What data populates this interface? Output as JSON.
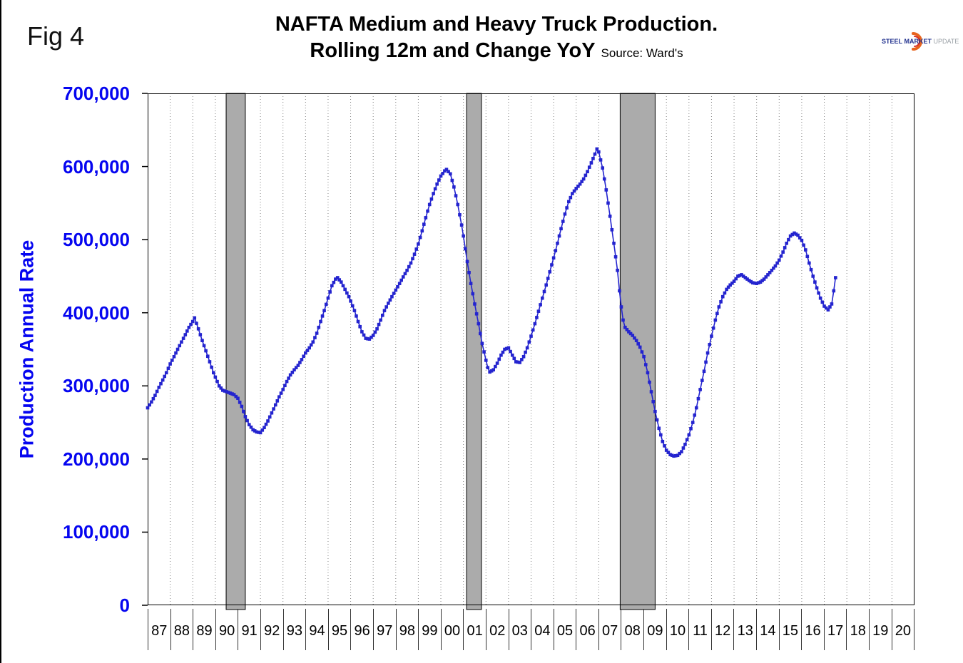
{
  "figure_label": "Fig 4",
  "title": {
    "line1": "NAFTA Medium and Heavy Truck Production.",
    "line2": "Rolling 12m and Change YoY",
    "source": "Source: Ward's"
  },
  "logo": {
    "steel": "STEEL",
    "market": "MARKET",
    "update": "UPDATE",
    "arc_color": "#E8641E"
  },
  "y_axis": {
    "title": "Production Annual Rate",
    "tick_labels": [
      "700,000",
      "600,000",
      "500,000",
      "400,000",
      "300,000",
      "200,000",
      "100,000",
      "0"
    ],
    "label_color": "#0505F0"
  },
  "x_axis": {
    "tick_labels": [
      "87",
      "88",
      "89",
      "90",
      "91",
      "92",
      "93",
      "94",
      "95",
      "96",
      "97",
      "98",
      "99",
      "00",
      "01",
      "02",
      "03",
      "04",
      "05",
      "06",
      "07",
      "08",
      "09",
      "10",
      "11",
      "12",
      "13",
      "14",
      "15",
      "16",
      "17",
      "18",
      "19",
      "20"
    ]
  },
  "chart_data": {
    "type": "line",
    "title": "NAFTA Medium and Heavy Truck Production. Rolling 12m and Change YoY",
    "source": "Source: Ward's",
    "xlabel": "",
    "ylabel": "Production Annual Rate",
    "ylim": [
      0,
      700000
    ],
    "ytick_interval": 100000,
    "xlim": [
      1987,
      2021
    ],
    "grid": "vertical-dotted",
    "legend": "none",
    "line_color": "#2424CF",
    "band_color": "#ABABAB",
    "marker": "square",
    "recession_bands": [
      [
        1990.48,
        1991.33
      ],
      [
        2001.14,
        2001.8
      ],
      [
        2007.95,
        2009.5
      ]
    ],
    "series": [
      {
        "name": "Production Annual Rate (rolling 12m)",
        "points": [
          [
            1987.0,
            270000
          ],
          [
            1987.17,
            278000
          ],
          [
            1987.33,
            287000
          ],
          [
            1987.5,
            298000
          ],
          [
            1987.67,
            308000
          ],
          [
            1987.83,
            318000
          ],
          [
            1988.0,
            330000
          ],
          [
            1988.17,
            340000
          ],
          [
            1988.33,
            350000
          ],
          [
            1988.5,
            360000
          ],
          [
            1988.67,
            370000
          ],
          [
            1988.83,
            380000
          ],
          [
            1989.0,
            388000
          ],
          [
            1989.08,
            393000
          ],
          [
            1989.25,
            378000
          ],
          [
            1989.42,
            362000
          ],
          [
            1989.58,
            348000
          ],
          [
            1989.75,
            333000
          ],
          [
            1989.92,
            318000
          ],
          [
            1990.0,
            312000
          ],
          [
            1990.17,
            300000
          ],
          [
            1990.33,
            294000
          ],
          [
            1990.5,
            292000
          ],
          [
            1990.67,
            290000
          ],
          [
            1990.83,
            288000
          ],
          [
            1991.0,
            283000
          ],
          [
            1991.17,
            272000
          ],
          [
            1991.33,
            258000
          ],
          [
            1991.5,
            247000
          ],
          [
            1991.67,
            240000
          ],
          [
            1991.83,
            237000
          ],
          [
            1992.0,
            236000
          ],
          [
            1992.17,
            243000
          ],
          [
            1992.33,
            252000
          ],
          [
            1992.5,
            263000
          ],
          [
            1992.67,
            274000
          ],
          [
            1992.83,
            285000
          ],
          [
            1993.0,
            295000
          ],
          [
            1993.17,
            306000
          ],
          [
            1993.33,
            315000
          ],
          [
            1993.5,
            322000
          ],
          [
            1993.67,
            328000
          ],
          [
            1993.83,
            336000
          ],
          [
            1994.0,
            345000
          ],
          [
            1994.17,
            352000
          ],
          [
            1994.33,
            360000
          ],
          [
            1994.5,
            372000
          ],
          [
            1994.67,
            388000
          ],
          [
            1994.83,
            403000
          ],
          [
            1995.0,
            420000
          ],
          [
            1995.17,
            437000
          ],
          [
            1995.33,
            446000
          ],
          [
            1995.42,
            448000
          ],
          [
            1995.58,
            442000
          ],
          [
            1995.75,
            432000
          ],
          [
            1995.92,
            422000
          ],
          [
            1996.0,
            416000
          ],
          [
            1996.17,
            403000
          ],
          [
            1996.33,
            388000
          ],
          [
            1996.5,
            374000
          ],
          [
            1996.67,
            365000
          ],
          [
            1996.83,
            364000
          ],
          [
            1997.0,
            369000
          ],
          [
            1997.17,
            378000
          ],
          [
            1997.33,
            390000
          ],
          [
            1997.5,
            403000
          ],
          [
            1997.67,
            413000
          ],
          [
            1997.83,
            422000
          ],
          [
            1998.0,
            431000
          ],
          [
            1998.17,
            440000
          ],
          [
            1998.33,
            449000
          ],
          [
            1998.5,
            458000
          ],
          [
            1998.67,
            468000
          ],
          [
            1998.83,
            480000
          ],
          [
            1999.0,
            494000
          ],
          [
            1999.17,
            512000
          ],
          [
            1999.33,
            530000
          ],
          [
            1999.5,
            548000
          ],
          [
            1999.67,
            563000
          ],
          [
            1999.83,
            576000
          ],
          [
            2000.0,
            587000
          ],
          [
            2000.17,
            594000
          ],
          [
            2000.25,
            596000
          ],
          [
            2000.42,
            590000
          ],
          [
            2000.58,
            572000
          ],
          [
            2000.75,
            548000
          ],
          [
            2000.92,
            520000
          ],
          [
            2001.0,
            505000
          ],
          [
            2001.17,
            470000
          ],
          [
            2001.33,
            440000
          ],
          [
            2001.5,
            412000
          ],
          [
            2001.67,
            385000
          ],
          [
            2001.83,
            358000
          ],
          [
            2002.0,
            335000
          ],
          [
            2002.08,
            325000
          ],
          [
            2002.17,
            319000
          ],
          [
            2002.33,
            322000
          ],
          [
            2002.5,
            331000
          ],
          [
            2002.67,
            342000
          ],
          [
            2002.83,
            350000
          ],
          [
            2003.0,
            352000
          ],
          [
            2003.17,
            342000
          ],
          [
            2003.33,
            333000
          ],
          [
            2003.5,
            332000
          ],
          [
            2003.67,
            340000
          ],
          [
            2003.83,
            352000
          ],
          [
            2004.0,
            368000
          ],
          [
            2004.17,
            385000
          ],
          [
            2004.33,
            402000
          ],
          [
            2004.5,
            420000
          ],
          [
            2004.67,
            438000
          ],
          [
            2004.83,
            456000
          ],
          [
            2005.0,
            475000
          ],
          [
            2005.17,
            495000
          ],
          [
            2005.33,
            515000
          ],
          [
            2005.5,
            535000
          ],
          [
            2005.67,
            552000
          ],
          [
            2005.83,
            563000
          ],
          [
            2006.0,
            570000
          ],
          [
            2006.17,
            576000
          ],
          [
            2006.33,
            583000
          ],
          [
            2006.5,
            593000
          ],
          [
            2006.67,
            605000
          ],
          [
            2006.83,
            617000
          ],
          [
            2006.92,
            624000
          ],
          [
            2007.0,
            620000
          ],
          [
            2007.17,
            598000
          ],
          [
            2007.33,
            568000
          ],
          [
            2007.5,
            532000
          ],
          [
            2007.67,
            495000
          ],
          [
            2007.83,
            458000
          ],
          [
            2007.92,
            430000
          ],
          [
            2008.0,
            408000
          ],
          [
            2008.08,
            390000
          ],
          [
            2008.17,
            380000
          ],
          [
            2008.33,
            374000
          ],
          [
            2008.5,
            369000
          ],
          [
            2008.67,
            362000
          ],
          [
            2008.83,
            353000
          ],
          [
            2009.0,
            340000
          ],
          [
            2009.17,
            318000
          ],
          [
            2009.33,
            292000
          ],
          [
            2009.5,
            265000
          ],
          [
            2009.67,
            242000
          ],
          [
            2009.83,
            224000
          ],
          [
            2010.0,
            212000
          ],
          [
            2010.17,
            206000
          ],
          [
            2010.33,
            204000
          ],
          [
            2010.5,
            205000
          ],
          [
            2010.67,
            210000
          ],
          [
            2010.83,
            220000
          ],
          [
            2011.0,
            233000
          ],
          [
            2011.17,
            250000
          ],
          [
            2011.33,
            270000
          ],
          [
            2011.5,
            295000
          ],
          [
            2011.67,
            320000
          ],
          [
            2011.83,
            345000
          ],
          [
            2012.0,
            368000
          ],
          [
            2012.17,
            390000
          ],
          [
            2012.33,
            408000
          ],
          [
            2012.5,
            422000
          ],
          [
            2012.67,
            432000
          ],
          [
            2012.83,
            438000
          ],
          [
            2013.0,
            443000
          ],
          [
            2013.17,
            450000
          ],
          [
            2013.33,
            452000
          ],
          [
            2013.5,
            448000
          ],
          [
            2013.67,
            444000
          ],
          [
            2013.83,
            441000
          ],
          [
            2014.0,
            440000
          ],
          [
            2014.17,
            442000
          ],
          [
            2014.33,
            446000
          ],
          [
            2014.5,
            452000
          ],
          [
            2014.67,
            458000
          ],
          [
            2014.83,
            464000
          ],
          [
            2015.0,
            472000
          ],
          [
            2015.17,
            483000
          ],
          [
            2015.33,
            495000
          ],
          [
            2015.5,
            505000
          ],
          [
            2015.67,
            509000
          ],
          [
            2015.83,
            506000
          ],
          [
            2016.0,
            499000
          ],
          [
            2016.17,
            486000
          ],
          [
            2016.33,
            468000
          ],
          [
            2016.5,
            450000
          ],
          [
            2016.67,
            434000
          ],
          [
            2016.83,
            420000
          ],
          [
            2017.0,
            409000
          ],
          [
            2017.17,
            404000
          ],
          [
            2017.33,
            412000
          ],
          [
            2017.42,
            430000
          ],
          [
            2017.5,
            448000
          ]
        ]
      }
    ]
  }
}
